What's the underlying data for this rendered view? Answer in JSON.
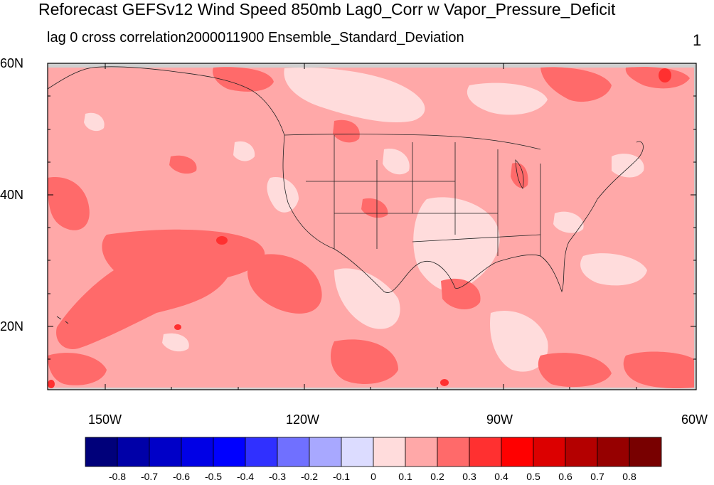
{
  "title": "Reforecast GEFSv12 Wind Speed 850mb Lag0_Corr w Vapor_Pressure_Deficit",
  "subtitle": "lag 0 cross correlation2000011900 Ensemble_Standard_Deviation",
  "panel_number": "1",
  "lat_labels": {
    "n60": "60N",
    "n40": "40N",
    "n20": "20N"
  },
  "lon_labels": {
    "w150": "150W",
    "w120": "120W",
    "w90": "90W",
    "w60": "60W"
  },
  "colorbar": {
    "labels": [
      "-0.8",
      "-0.7",
      "-0.6",
      "-0.5",
      "-0.4",
      "-0.3",
      "-0.2",
      "-0.1",
      "0",
      "0.1",
      "0.2",
      "0.3",
      "0.4",
      "0.5",
      "0.6",
      "0.7",
      "0.8"
    ],
    "colors": [
      "#00007a",
      "#0000a8",
      "#0000c8",
      "#0000e6",
      "#0000ff",
      "#3030ff",
      "#7070ff",
      "#a8a8ff",
      "#dcdcff",
      "#ffdcdc",
      "#ffa8a8",
      "#ff6a6a",
      "#ff3030",
      "#ff0000",
      "#dc0000",
      "#b40000",
      "#960000",
      "#780000"
    ]
  },
  "fill_colors": {
    "base": "#ffa8a8",
    "light": "#ffdcdc",
    "mid": "#ff6a6a",
    "strong": "#ff3030",
    "missing": "#cfcfcf"
  }
}
